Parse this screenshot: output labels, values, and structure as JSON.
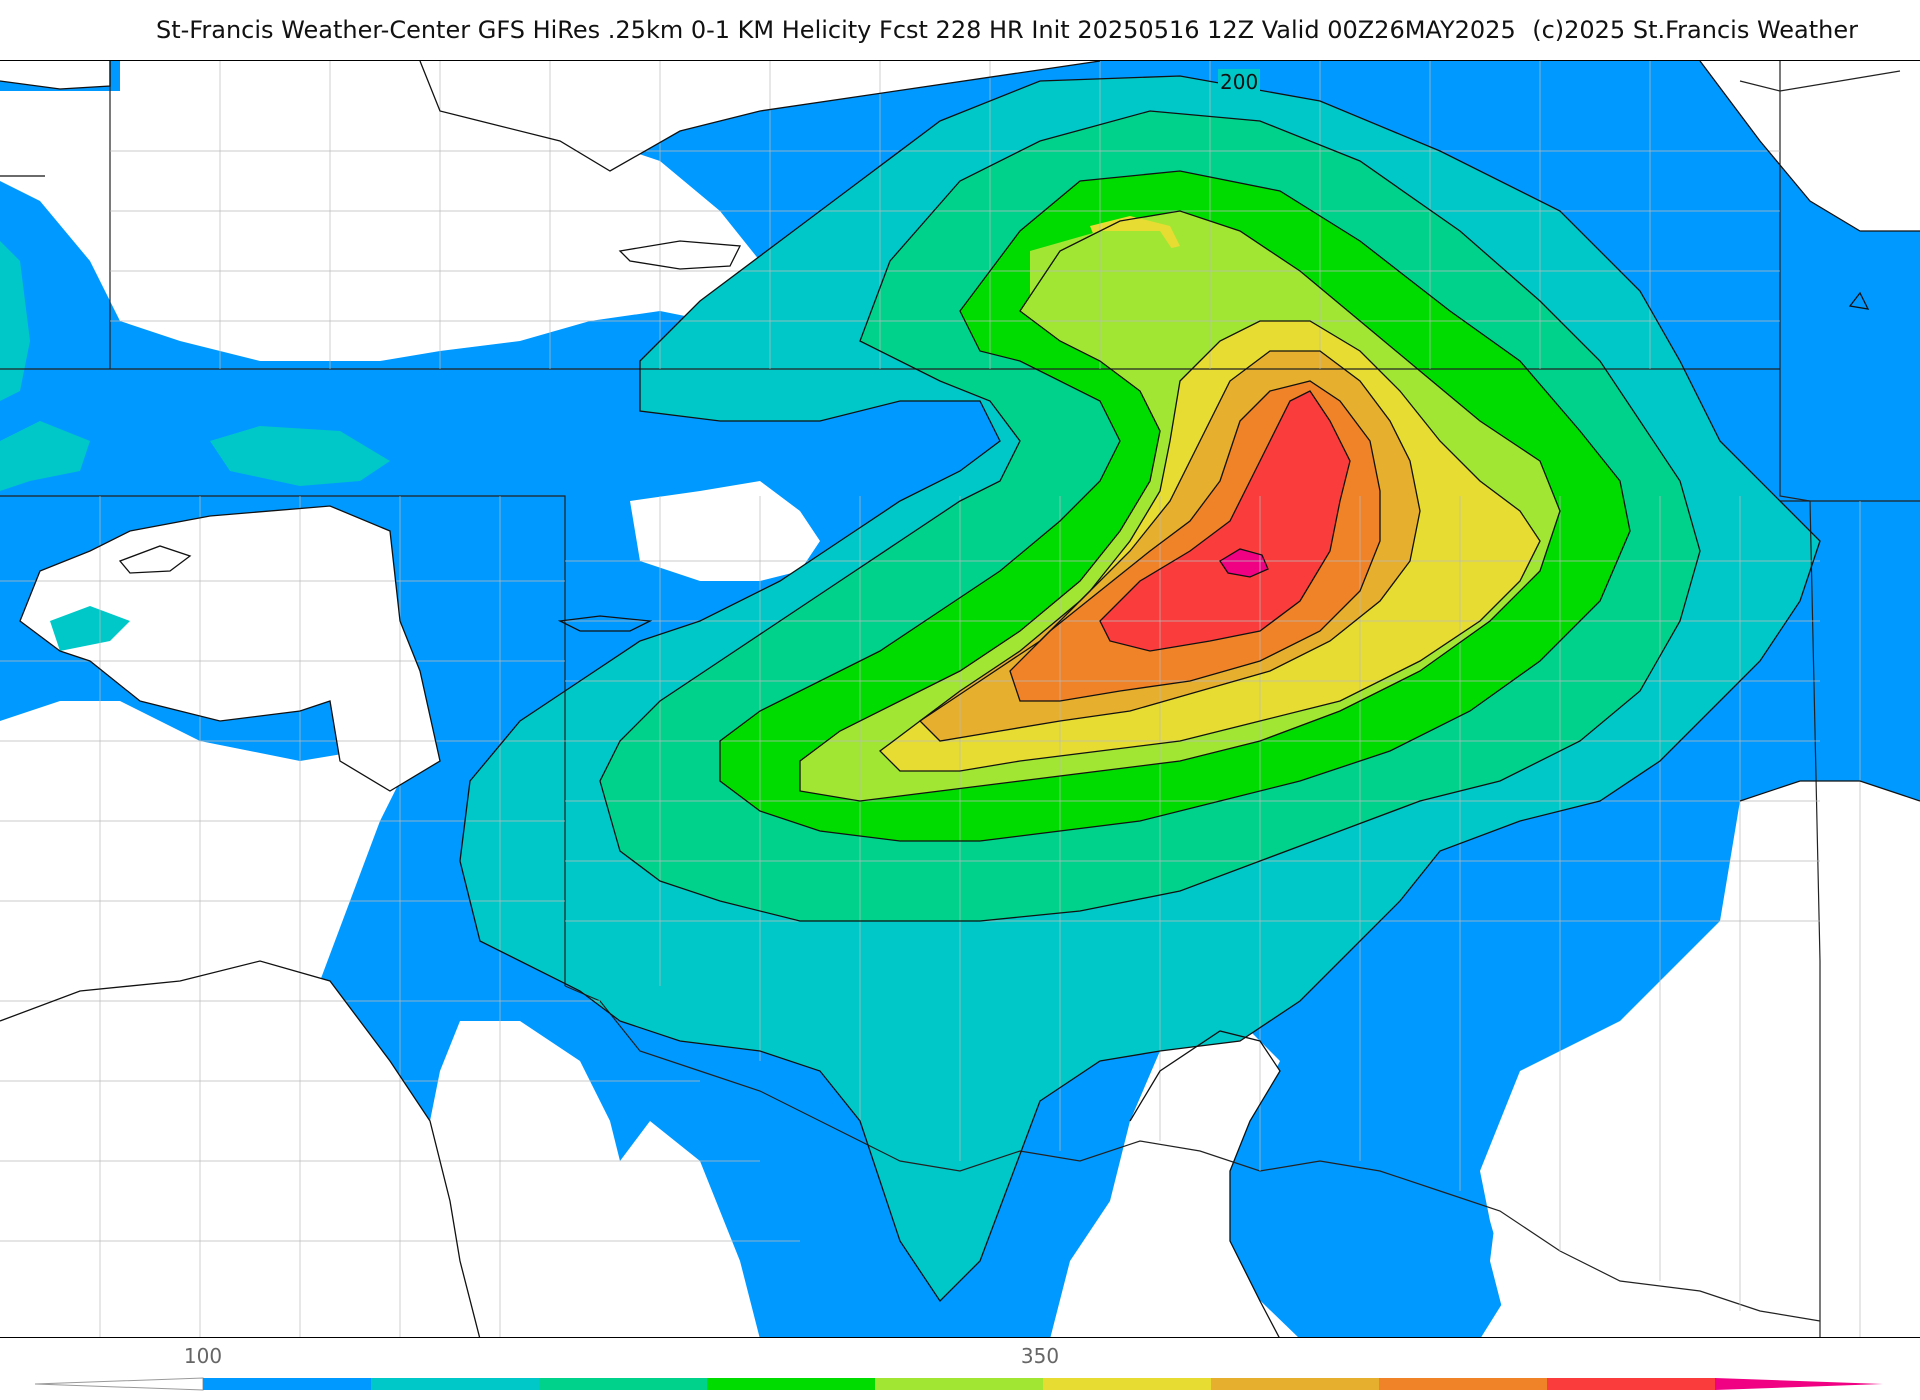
{
  "header": {
    "title": "St-Francis Weather-Center GFS HiRes .25km 0-1 KM Helicity Fcst 228 HR Init 20250516 12Z  Valid 00Z26MAY2025",
    "copyright": "(c)2025 St.Francis Weather"
  },
  "map": {
    "field": "0-1 KM Helicity",
    "contour_label": "200"
  },
  "colorbar": {
    "tick_labels": [
      "100",
      "350"
    ],
    "colors": [
      "#0099ff",
      "#00c8c8",
      "#00d28c",
      "#00dc00",
      "#a0e632",
      "#e6dc32",
      "#e6af2d",
      "#f08228",
      "#fa3c3c",
      "#f00082"
    ]
  }
}
